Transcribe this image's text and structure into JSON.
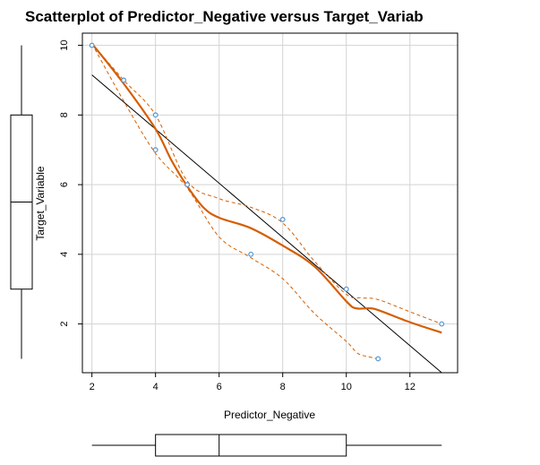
{
  "chart_data": {
    "type": "scatter",
    "title": "Scatterplot of Predictor_Negative versus Target_Variab",
    "xlabel": "Predictor_Negative",
    "ylabel": "Target_Variable",
    "xlim": [
      1.7,
      13.5
    ],
    "ylim": [
      0.6,
      10.35
    ],
    "x_ticks": [
      2,
      4,
      6,
      8,
      10,
      12
    ],
    "y_ticks": [
      2,
      4,
      6,
      8,
      10
    ],
    "grid": true,
    "points": [
      {
        "x": 2,
        "y": 10
      },
      {
        "x": 3,
        "y": 9
      },
      {
        "x": 4,
        "y": 8
      },
      {
        "x": 4,
        "y": 7
      },
      {
        "x": 5,
        "y": 6
      },
      {
        "x": 7,
        "y": 4
      },
      {
        "x": 8,
        "y": 5
      },
      {
        "x": 10,
        "y": 3
      },
      {
        "x": 11,
        "y": 1
      },
      {
        "x": 13,
        "y": 2
      }
    ],
    "linear_fit": {
      "x": [
        2,
        13
      ],
      "y": [
        9.15,
        0.6
      ]
    },
    "smooth_fit": {
      "x": [
        2,
        3,
        4,
        4.5,
        5,
        5.5,
        6,
        7,
        8,
        9,
        10,
        10.3,
        10.7,
        11,
        12,
        13
      ],
      "y": [
        10.05,
        8.9,
        7.6,
        6.7,
        5.95,
        5.35,
        5.05,
        4.75,
        4.25,
        3.65,
        2.65,
        2.45,
        2.45,
        2.4,
        2.05,
        1.75
      ]
    },
    "smooth_upper": {
      "x": [
        2,
        3,
        4,
        5,
        6,
        7,
        8,
        9,
        10,
        10.5,
        11,
        12,
        13
      ],
      "y": [
        10.05,
        9.0,
        8.0,
        6.1,
        5.6,
        5.35,
        4.9,
        3.8,
        2.85,
        2.75,
        2.7,
        2.35,
        2.0
      ]
    },
    "smooth_lower": {
      "x": [
        2,
        3,
        4,
        5,
        6,
        7,
        8,
        9,
        10,
        10.3,
        10.5,
        11
      ],
      "y": [
        10.05,
        8.4,
        6.9,
        5.9,
        4.5,
        3.9,
        3.3,
        2.3,
        1.5,
        1.2,
        1.1,
        1.0
      ]
    },
    "x_boxplot": {
      "whisker_low": 2,
      "q1": 4,
      "median": 6,
      "q3": 10,
      "whisker_high": 13
    },
    "y_boxplot": {
      "whisker_low": 1,
      "q1": 3,
      "median": 5.5,
      "q3": 8,
      "whisker_high": 10
    },
    "colors": {
      "points": "#5b9bd5",
      "smooth": "#d55e00",
      "linear": "#000000",
      "grid": "#d3d3d3"
    }
  }
}
